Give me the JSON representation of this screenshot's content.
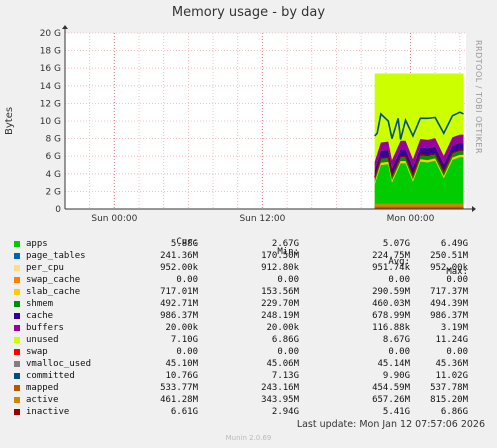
{
  "page": {
    "title": "Memory usage - by day",
    "side_label": "RRDTOOL / TOBI OETIKER",
    "last_update": "Last update: Mon Jan 12 07:57:06 2026",
    "footer": "Munin 2.0.69"
  },
  "legend": {
    "headers": {
      "cur": "Cur:",
      "min": "Min:",
      "avg": "Avg:",
      "max": "Max:"
    },
    "rows": [
      {
        "name": "apps",
        "color": "#00cc00",
        "cur": "5.88G",
        "min": "2.67G",
        "avg": "5.07G",
        "max": "6.49G"
      },
      {
        "name": "page_tables",
        "color": "#0066b3",
        "cur": "241.36M",
        "min": "170.50M",
        "avg": "224.75M",
        "max": "250.51M"
      },
      {
        "name": "per_cpu",
        "color": "#ffdc8c",
        "cur": "952.00k",
        "min": "912.80k",
        "avg": "951.74k",
        "max": "952.00k"
      },
      {
        "name": "swap_cache",
        "color": "#ff8000",
        "cur": "0.00",
        "min": "0.00",
        "avg": "0.00",
        "max": "0.00"
      },
      {
        "name": "slab_cache",
        "color": "#ffcc00",
        "cur": "717.01M",
        "min": "153.56M",
        "avg": "290.59M",
        "max": "717.37M"
      },
      {
        "name": "shmem",
        "color": "#008f00",
        "cur": "492.71M",
        "min": "229.70M",
        "avg": "460.03M",
        "max": "494.39M"
      },
      {
        "name": "cache",
        "color": "#330099",
        "cur": "986.37M",
        "min": "248.19M",
        "avg": "678.99M",
        "max": "986.37M"
      },
      {
        "name": "buffers",
        "color": "#990099",
        "cur": "20.00k",
        "min": "20.00k",
        "avg": "116.88k",
        "max": "3.19M"
      },
      {
        "name": "unused",
        "color": "#ccff00",
        "cur": "7.10G",
        "min": "6.86G",
        "avg": "8.67G",
        "max": "11.24G"
      },
      {
        "name": "swap",
        "color": "#ff0000",
        "cur": "0.00",
        "min": "0.00",
        "avg": "0.00",
        "max": "0.00"
      },
      {
        "name": "vmalloc_used",
        "color": "#808080",
        "cur": "45.10M",
        "min": "45.06M",
        "avg": "45.14M",
        "max": "45.36M"
      },
      {
        "name": "committed",
        "color": "#004d80",
        "cur": "10.76G",
        "min": "7.13G",
        "avg": "9.90G",
        "max": "11.02G"
      },
      {
        "name": "mapped",
        "color": "#b35a00",
        "cur": "533.77M",
        "min": "243.16M",
        "avg": "454.59M",
        "max": "537.78M"
      },
      {
        "name": "active",
        "color": "#cc8800",
        "cur": "461.28M",
        "min": "343.95M",
        "avg": "657.26M",
        "max": "815.20M"
      },
      {
        "name": "inactive",
        "color": "#990000",
        "cur": "6.61G",
        "min": "2.94G",
        "avg": "5.41G",
        "max": "6.86G"
      }
    ]
  },
  "chart_data": {
    "type": "area",
    "title": "Memory usage - by day",
    "ylabel": "Bytes",
    "ylim": [
      0,
      20
    ],
    "yticks": [
      0,
      2,
      4,
      6,
      8,
      10,
      12,
      14,
      16,
      18,
      20
    ],
    "ytick_labels": [
      "0",
      "2 G",
      "4 G",
      "6 G",
      "8 G",
      "10 G",
      "12 G",
      "14 G",
      "16 G",
      "18 G",
      "20 G"
    ],
    "xlim": [
      0,
      32.5
    ],
    "xticks": [
      4,
      16,
      28
    ],
    "xtick_labels": [
      "Sun 00:00",
      "Sun 12:00",
      "Mon 00:00"
    ],
    "grid": true,
    "data_start": 25.1,
    "series": [
      {
        "name": "apps",
        "color": "#00cc00",
        "x": [
          25.1,
          25.6,
          26.2,
          26.5,
          27.2,
          27.6,
          28.2,
          28.8,
          29.4,
          30.0,
          30.7,
          31.4,
          32.0,
          32.3
        ],
        "values": [
          2.8,
          5.0,
          5.1,
          3.0,
          5.2,
          5.2,
          3.1,
          5.4,
          5.3,
          5.5,
          3.5,
          5.6,
          5.9,
          5.9
        ]
      },
      {
        "name": "committed",
        "color": "#004d80",
        "x": [
          25.1,
          25.3,
          25.6,
          26.2,
          26.5,
          27.0,
          27.2,
          27.6,
          28.2,
          28.8,
          29.4,
          30.0,
          30.7,
          31.4,
          32.0,
          32.3
        ],
        "values": [
          8.3,
          8.6,
          10.8,
          10.0,
          8.0,
          10.3,
          7.9,
          10.1,
          8.3,
          10.3,
          10.3,
          10.4,
          8.6,
          10.6,
          11.0,
          10.8
        ]
      },
      {
        "name": "unused",
        "color": "#ccff00",
        "x": [
          25.1,
          32.3
        ],
        "values": [
          15.4,
          15.4
        ]
      }
    ]
  }
}
